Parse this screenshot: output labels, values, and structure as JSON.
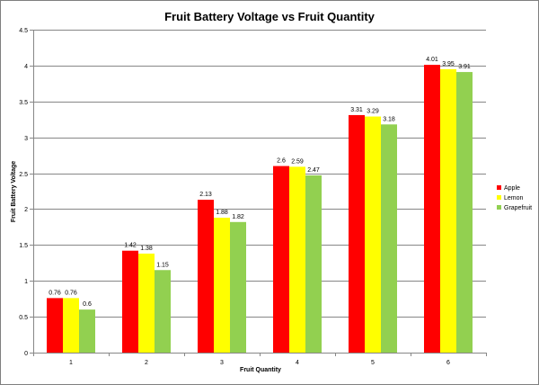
{
  "chart_data": {
    "type": "bar",
    "title": "Fruit Battery Voltage vs Fruit Quantity",
    "xlabel": "Fruit Quantity",
    "ylabel": "Fruit Battery Voltage",
    "categories": [
      "1",
      "2",
      "3",
      "4",
      "5",
      "6"
    ],
    "series": [
      {
        "name": "Apple",
        "color": "#ff0000",
        "values": [
          0.76,
          1.42,
          2.13,
          2.6,
          3.31,
          4.01
        ],
        "labels": [
          "0.76",
          "1.42",
          "2.13",
          "2.6",
          "3.31",
          "4.01"
        ]
      },
      {
        "name": "Lemon",
        "color": "#ffff00",
        "values": [
          0.76,
          1.38,
          1.88,
          2.59,
          3.29,
          3.95
        ],
        "labels": [
          "0.76",
          "1.38",
          "1.88",
          "2.59",
          "3.29",
          "3.95"
        ]
      },
      {
        "name": "Grapefruit",
        "color": "#92d050",
        "values": [
          0.6,
          1.15,
          1.82,
          2.47,
          3.18,
          3.91
        ],
        "labels": [
          "0.6",
          "1.15",
          "1.82",
          "2.47",
          "3.18",
          "3.91"
        ]
      }
    ],
    "ylim": [
      0,
      4.5
    ],
    "yticks": [
      "0",
      "0.5",
      "1",
      "1.5",
      "2",
      "2.5",
      "3",
      "3.5",
      "4",
      "4.5"
    ],
    "grid": true,
    "legend_position": "right"
  }
}
